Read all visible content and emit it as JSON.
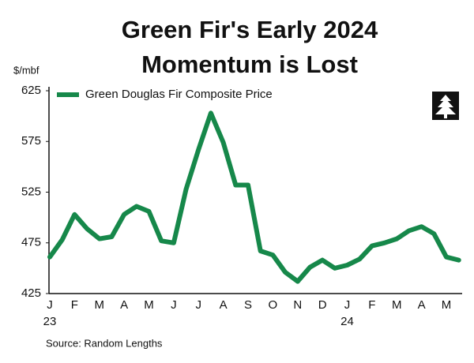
{
  "chart_data": {
    "type": "line",
    "title": [
      "Green Fir's Early 2024",
      "Momentum is Lost"
    ],
    "y_label": "$/mbf",
    "source": "Source: Random Lengths",
    "categories": [
      "J",
      null,
      "F",
      null,
      "M",
      null,
      "A",
      null,
      "M",
      null,
      "J",
      null,
      "J",
      null,
      "A",
      null,
      "S",
      null,
      "O",
      null,
      "N",
      null,
      "D",
      null,
      "J",
      null,
      "F",
      null,
      "M",
      null,
      "A",
      null,
      "M",
      null
    ],
    "x_sublabels": [
      "23",
      null,
      null,
      null,
      null,
      null,
      null,
      null,
      null,
      null,
      null,
      null,
      null,
      null,
      null,
      null,
      null,
      null,
      null,
      null,
      null,
      null,
      null,
      null,
      "24",
      null,
      null,
      null,
      null,
      null,
      null,
      null,
      null,
      null
    ],
    "series": [
      {
        "name": "Green Douglas Fir Composite Price",
        "color": "#16884a",
        "values": [
          461,
          478,
          503,
          489,
          479,
          481,
          503,
          511,
          506,
          477,
          475,
          528,
          567,
          603,
          574,
          532,
          532,
          467,
          463,
          446,
          437,
          451,
          458,
          450,
          453,
          459,
          472,
          475,
          479,
          487,
          491,
          484,
          461,
          458
        ]
      }
    ],
    "ylim": [
      425,
      625
    ],
    "yticks": [
      425,
      475,
      525,
      575,
      625
    ],
    "grid": false,
    "legend": "top-left"
  }
}
